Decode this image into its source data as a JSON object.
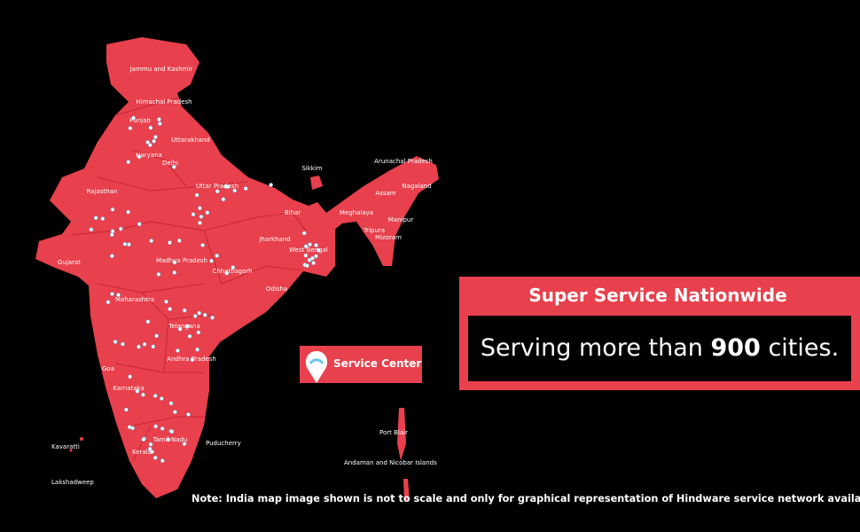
{
  "map": {
    "states": [
      "Jammu and Kashmir",
      "Himachal Pradesh",
      "Punjab",
      "Uttarakhand",
      "Haryana",
      "Delhi",
      "Rajasthan",
      "Uttar Pradesh",
      "Sikkim",
      "Arunachal Pradesh",
      "Assam",
      "Nagaland",
      "Meghalaya",
      "Manipur",
      "Mizoram",
      "Tripura",
      "Bihar",
      "Jharkhand",
      "West Bengal",
      "Gujarat",
      "Madhya Pradesh",
      "Chhattisgarh",
      "Odisha",
      "Maharashtra",
      "Telangana",
      "Andhra Pradesh",
      "Karnataka",
      "Goa",
      "Kerala",
      "Tamil Nadu",
      "Puducherry"
    ],
    "islands": [
      "Kavaratti",
      "Lakshadweep",
      "Port Blair",
      "Andaman and Nicobar Islands"
    ]
  },
  "legend": {
    "label": "Service Center"
  },
  "banner": {
    "title": "Super Service Nationwide",
    "text_before": "Serving more than",
    "highlight": "900",
    "text_after": "cities."
  },
  "note": "Note: India map image shown is not to scale and only for graphical representation of Hindware service network availablity."
}
